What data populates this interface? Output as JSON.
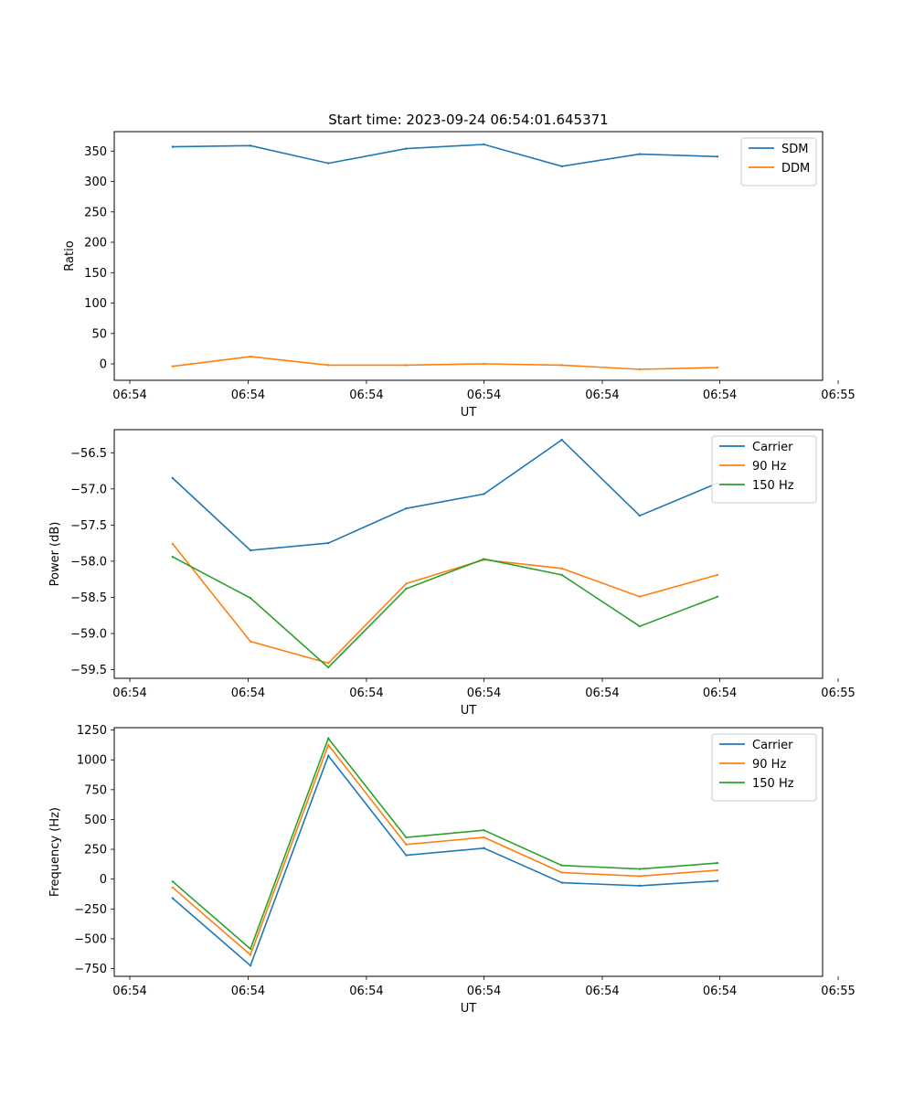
{
  "figure_title": "Start time: 2023-09-24 06:54:01.645371",
  "colors": {
    "blue": "#1f77b4",
    "orange": "#ff7f0e",
    "green": "#2ca02c"
  },
  "chart_data": [
    {
      "type": "line",
      "title": "Start time: 2023-09-24 06:54:01.645371",
      "xlabel": "UT",
      "ylabel": "Ratio",
      "x": [
        0,
        1,
        2,
        3,
        4,
        5,
        6,
        7
      ],
      "xlim": [
        -0.75,
        8.35
      ],
      "x_ticks": [
        -0.55,
        0.97,
        2.49,
        4.0,
        5.52,
        7.03,
        8.55
      ],
      "x_tick_labels": [
        "06:54",
        "06:54",
        "06:54",
        "06:54",
        "06:54",
        "06:54",
        "06:55"
      ],
      "ylim": [
        -27,
        382
      ],
      "y_ticks": [
        0,
        50,
        100,
        150,
        200,
        250,
        300,
        350
      ],
      "y_tick_labels": [
        "0",
        "50",
        "100",
        "150",
        "200",
        "250",
        "300",
        "350"
      ],
      "legend": "top-right",
      "series": [
        {
          "name": "SDM",
          "color": "#1f77b4",
          "values": [
            357,
            359,
            330,
            354,
            361,
            325,
            345,
            341
          ]
        },
        {
          "name": "DDM",
          "color": "#ff7f0e",
          "values": [
            -4,
            12,
            -2,
            -2,
            0,
            -2,
            -9,
            -6
          ]
        }
      ]
    },
    {
      "type": "line",
      "title": "",
      "xlabel": "UT",
      "ylabel": "Power (dB)",
      "x": [
        0,
        1,
        2,
        3,
        4,
        5,
        6,
        7
      ],
      "xlim": [
        -0.75,
        8.35
      ],
      "x_ticks": [
        -0.55,
        0.97,
        2.49,
        4.0,
        5.52,
        7.03,
        8.55
      ],
      "x_tick_labels": [
        "06:54",
        "06:54",
        "06:54",
        "06:54",
        "06:54",
        "06:54",
        "06:55"
      ],
      "ylim": [
        -59.62,
        -56.18
      ],
      "y_ticks": [
        -59.5,
        -59.0,
        -58.5,
        -58.0,
        -57.5,
        -57.0,
        -56.5
      ],
      "y_tick_labels": [
        "−59.5",
        "−59.0",
        "−58.5",
        "−58.0",
        "−57.5",
        "−57.0",
        "−56.5"
      ],
      "legend": "top-right",
      "series": [
        {
          "name": "Carrier",
          "color": "#1f77b4",
          "values": [
            -56.85,
            -57.85,
            -57.75,
            -57.27,
            -57.07,
            -56.32,
            -57.37,
            -56.92
          ]
        },
        {
          "name": "90 Hz",
          "color": "#ff7f0e",
          "values": [
            -57.76,
            -59.11,
            -59.41,
            -58.31,
            -57.98,
            -58.1,
            -58.49,
            -58.19
          ]
        },
        {
          "name": "150 Hz",
          "color": "#2ca02c",
          "values": [
            -57.94,
            -58.51,
            -59.47,
            -58.38,
            -57.97,
            -58.19,
            -58.9,
            -58.49
          ]
        }
      ]
    },
    {
      "type": "line",
      "title": "",
      "xlabel": "UT",
      "ylabel": "Frequency (Hz)",
      "x": [
        0,
        1,
        2,
        3,
        4,
        5,
        6,
        7
      ],
      "xlim": [
        -0.75,
        8.35
      ],
      "x_ticks": [
        -0.55,
        0.97,
        2.49,
        4.0,
        5.52,
        7.03,
        8.55
      ],
      "x_tick_labels": [
        "06:54",
        "06:54",
        "06:54",
        "06:54",
        "06:54",
        "06:54",
        "06:55"
      ],
      "ylim": [
        -815,
        1270
      ],
      "y_ticks": [
        -750,
        -500,
        -250,
        0,
        250,
        500,
        750,
        1000,
        1250
      ],
      "y_tick_labels": [
        "−750",
        "−500",
        "−250",
        "0",
        "250",
        "500",
        "750",
        "1000",
        "1250"
      ],
      "legend": "top-right",
      "series": [
        {
          "name": "Carrier",
          "color": "#1f77b4",
          "values": [
            -160,
            -725,
            1035,
            200,
            260,
            -30,
            -55,
            -15
          ]
        },
        {
          "name": "90 Hz",
          "color": "#ff7f0e",
          "values": [
            -70,
            -635,
            1125,
            290,
            350,
            55,
            25,
            75
          ]
        },
        {
          "name": "150 Hz",
          "color": "#2ca02c",
          "values": [
            -20,
            -585,
            1180,
            350,
            410,
            115,
            85,
            135
          ]
        }
      ]
    }
  ]
}
